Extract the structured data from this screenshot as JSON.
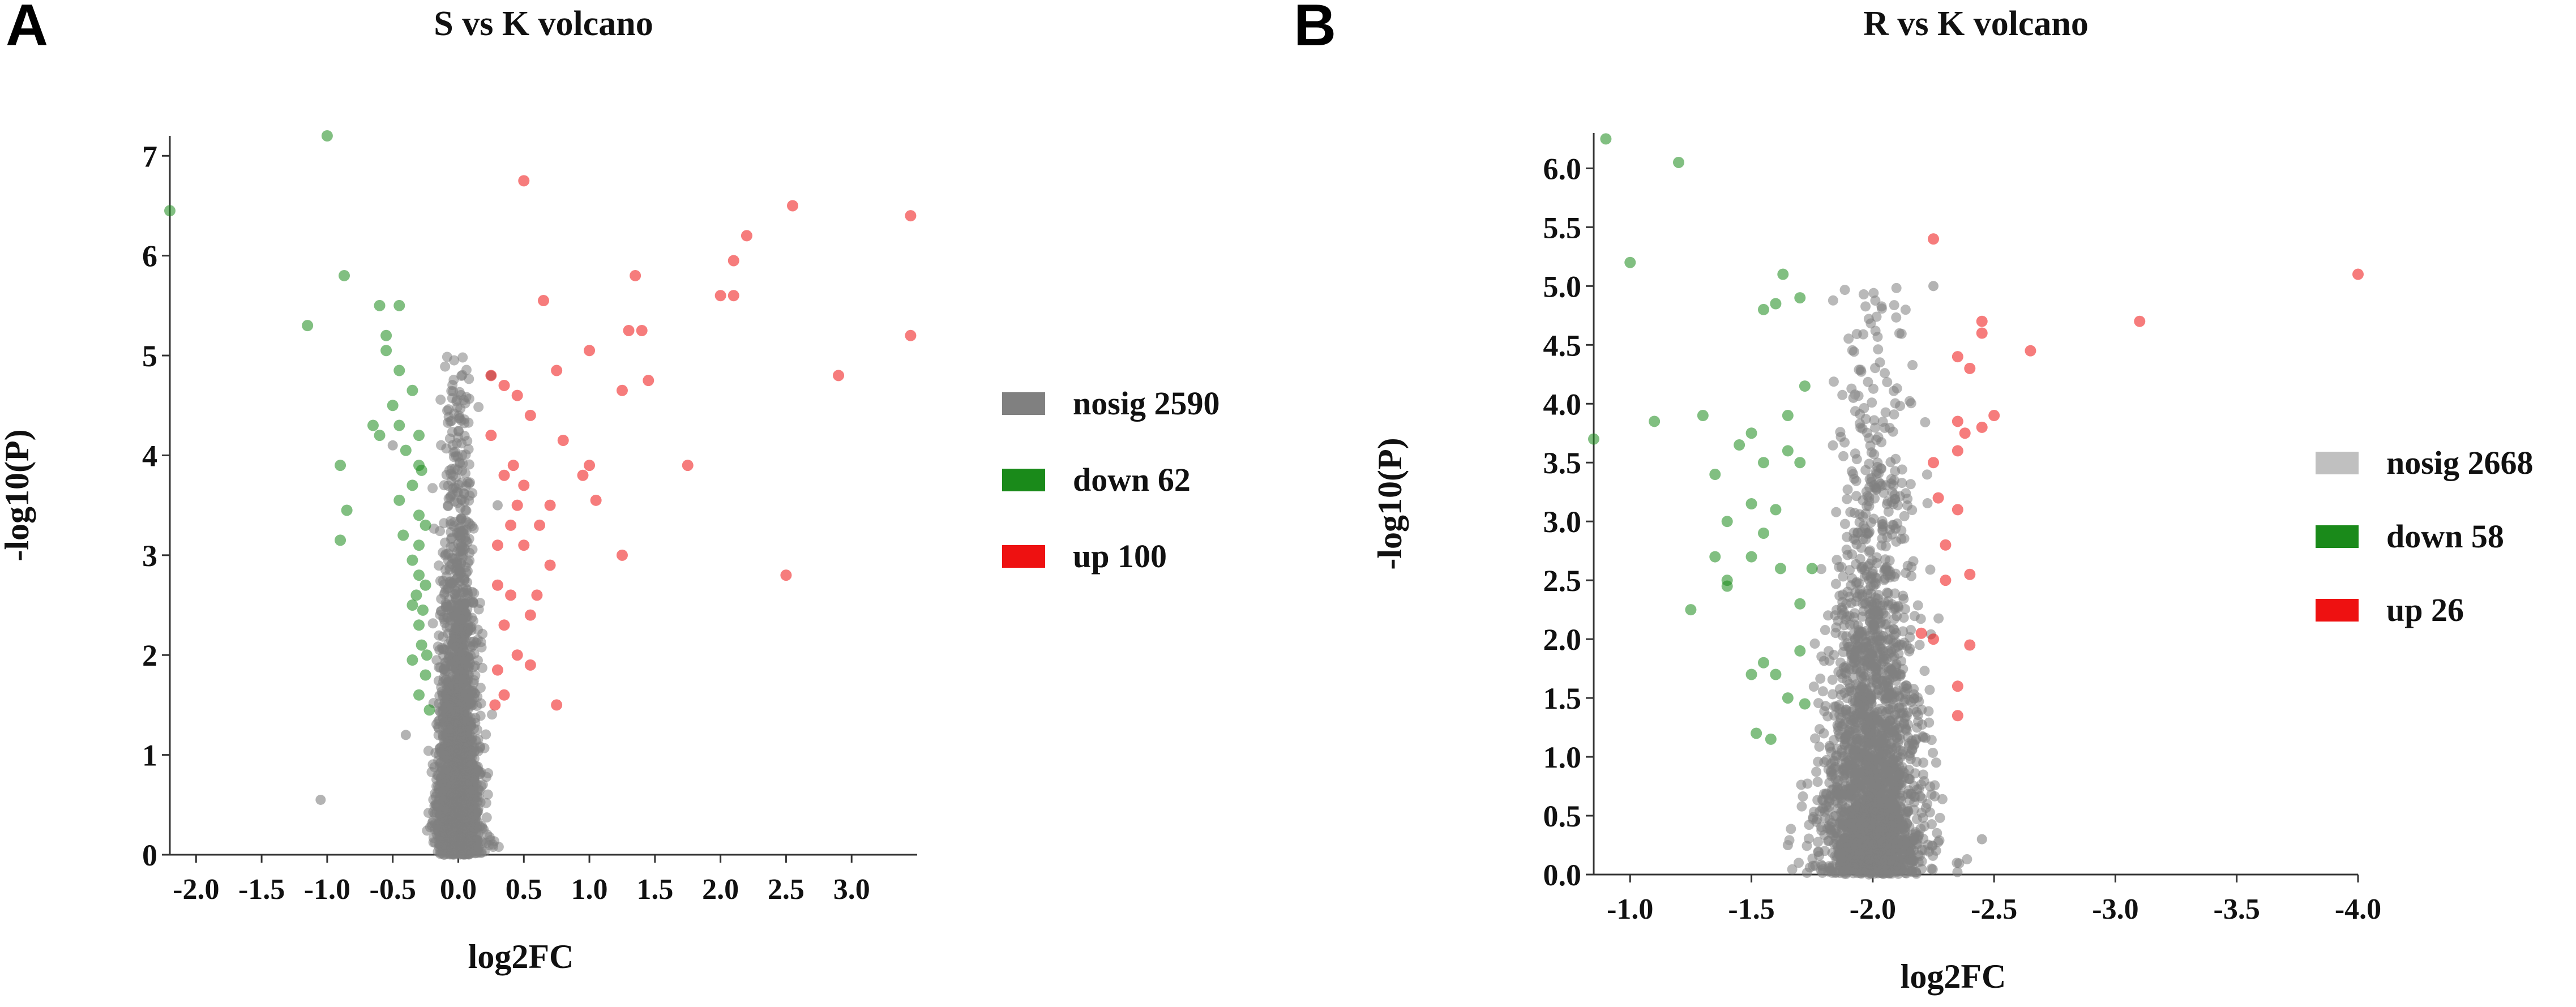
{
  "chart_data": [
    {
      "type": "scatter",
      "panel_label": "A",
      "title": "S vs K volcano",
      "xlabel": "log2FC",
      "ylabel": "-log10(P)",
      "xlim": [
        -2.2,
        3.5
      ],
      "ylim": [
        0,
        7.2
      ],
      "xticks": [
        -2.0,
        -1.5,
        -1.0,
        -0.5,
        0.0,
        0.5,
        1.0,
        1.5,
        2.0,
        2.5,
        3.0
      ],
      "xtick_labels": [
        "-2.0",
        "-1.5",
        "-1.0",
        "-0.5",
        "0.0",
        "0.5",
        "1.0",
        "1.5",
        "2.0",
        "2.5",
        "3.0"
      ],
      "yticks": [
        0,
        1,
        2,
        3,
        4,
        5,
        6,
        7
      ],
      "ytick_labels": [
        "0",
        "1",
        "2",
        "3",
        "4",
        "5",
        "6",
        "7"
      ],
      "legend": [
        {
          "label": "nosig 2590",
          "color": "#808080"
        },
        {
          "label": "down 62",
          "color": "#1a8a1a"
        },
        {
          "label": "up 100",
          "color": "#ee1111"
        }
      ],
      "series": [
        {
          "name": "nosig",
          "count": 2590,
          "color": "#808080",
          "x_center": 0.0,
          "x_spread_at_base": 0.45,
          "x_spread_at_top": 0.1,
          "y_max": 5.0,
          "highlighted_points": [
            [
              -1.05,
              0.55
            ],
            [
              -0.5,
              4.1
            ],
            [
              0.25,
              4.8
            ],
            [
              0.3,
              3.5
            ],
            [
              -0.4,
              1.2
            ]
          ]
        },
        {
          "name": "down",
          "count": 62,
          "color": "#1a8a1a",
          "points": [
            [
              -2.2,
              6.45
            ],
            [
              -1.0,
              7.2
            ],
            [
              -0.87,
              5.8
            ],
            [
              -1.15,
              5.3
            ],
            [
              -0.6,
              5.5
            ],
            [
              -0.45,
              5.5
            ],
            [
              -0.55,
              5.2
            ],
            [
              -0.55,
              5.05
            ],
            [
              -0.45,
              4.85
            ],
            [
              -0.35,
              4.65
            ],
            [
              -0.5,
              4.5
            ],
            [
              -0.6,
              4.2
            ],
            [
              -0.4,
              4.05
            ],
            [
              -0.3,
              3.9
            ],
            [
              -0.9,
              3.9
            ],
            [
              -0.85,
              3.45
            ],
            [
              -0.9,
              3.15
            ],
            [
              -0.35,
              3.7
            ],
            [
              -0.45,
              3.55
            ],
            [
              -0.3,
              3.4
            ],
            [
              -0.25,
              3.3
            ],
            [
              -0.3,
              3.1
            ],
            [
              -0.35,
              2.95
            ],
            [
              -0.3,
              2.8
            ],
            [
              -0.25,
              2.7
            ],
            [
              -0.35,
              2.5
            ],
            [
              -0.3,
              2.3
            ],
            [
              -0.28,
              2.1
            ],
            [
              -0.35,
              1.95
            ],
            [
              -0.25,
              1.8
            ],
            [
              -0.3,
              1.6
            ],
            [
              -0.22,
              1.45
            ],
            [
              -0.45,
              4.3
            ],
            [
              -0.65,
              4.3
            ],
            [
              -0.3,
              4.2
            ],
            [
              -0.28,
              3.85
            ],
            [
              -0.42,
              3.2
            ],
            [
              -0.32,
              2.6
            ],
            [
              -0.27,
              2.45
            ],
            [
              -0.24,
              2.0
            ]
          ]
        },
        {
          "name": "up",
          "count": 100,
          "color": "#ee1111",
          "points": [
            [
              0.5,
              6.75
            ],
            [
              0.65,
              5.55
            ],
            [
              0.25,
              4.8
            ],
            [
              0.35,
              4.7
            ],
            [
              0.45,
              4.6
            ],
            [
              0.75,
              4.85
            ],
            [
              1.0,
              5.05
            ],
            [
              1.3,
              5.25
            ],
            [
              1.4,
              5.25
            ],
            [
              1.35,
              5.8
            ],
            [
              1.45,
              4.75
            ],
            [
              1.25,
              4.65
            ],
            [
              2.0,
              5.6
            ],
            [
              2.1,
              5.95
            ],
            [
              2.2,
              6.2
            ],
            [
              2.55,
              6.5
            ],
            [
              2.1,
              5.6
            ],
            [
              3.45,
              6.4
            ],
            [
              3.45,
              5.2
            ],
            [
              2.9,
              4.8
            ],
            [
              1.75,
              3.9
            ],
            [
              1.25,
              3.0
            ],
            [
              2.5,
              2.8
            ],
            [
              0.55,
              4.4
            ],
            [
              0.8,
              4.15
            ],
            [
              0.95,
              3.8
            ],
            [
              1.0,
              3.9
            ],
            [
              1.05,
              3.55
            ],
            [
              0.7,
              3.5
            ],
            [
              0.5,
              3.7
            ],
            [
              0.35,
              3.8
            ],
            [
              0.4,
              3.3
            ],
            [
              0.5,
              3.1
            ],
            [
              0.6,
              2.6
            ],
            [
              0.7,
              2.9
            ],
            [
              0.3,
              2.7
            ],
            [
              0.35,
              2.3
            ],
            [
              0.45,
              2.0
            ],
            [
              0.55,
              1.9
            ],
            [
              0.3,
              1.85
            ],
            [
              0.35,
              1.6
            ],
            [
              0.28,
              1.5
            ],
            [
              0.75,
              1.5
            ],
            [
              0.4,
              2.6
            ],
            [
              0.55,
              2.4
            ],
            [
              0.3,
              3.1
            ],
            [
              0.42,
              3.9
            ],
            [
              0.25,
              4.2
            ],
            [
              0.45,
              3.5
            ],
            [
              0.62,
              3.3
            ]
          ]
        }
      ]
    },
    {
      "type": "scatter",
      "panel_label": "B",
      "title": "R vs K volcano",
      "xlabel": "log2FC",
      "ylabel": "-log10(P)",
      "xlim": [
        -0.85,
        -4.0
      ],
      "ylim": [
        0,
        6.3
      ],
      "xticks": [
        -1.0,
        -1.5,
        -2.0,
        -2.5,
        -3.0,
        -3.5,
        -4.0
      ],
      "xtick_labels": [
        "-1.0",
        "-1.5",
        "-2.0",
        "-2.5",
        "-3.0",
        "-3.5",
        "-4.0"
      ],
      "yticks": [
        0.0,
        0.5,
        1.0,
        1.5,
        2.0,
        2.5,
        3.0,
        3.5,
        4.0,
        4.5,
        5.0,
        5.5,
        6.0
      ],
      "ytick_labels": [
        "0.0",
        "0.5",
        "1.0",
        "1.5",
        "2.0",
        "2.5",
        "3.0",
        "3.5",
        "4.0",
        "4.5",
        "5.0",
        "5.5",
        "6.0"
      ],
      "legend": [
        {
          "label": "nosig 2668",
          "color": "#c0c0c0"
        },
        {
          "label": "down 58",
          "color": "#1a8a1a"
        },
        {
          "label": "up 26",
          "color": "#ee1111"
        }
      ],
      "series": [
        {
          "name": "nosig",
          "count": 2668,
          "color": "#808080",
          "x_center": -2.0,
          "x_spread_at_base": 0.6,
          "x_spread_at_top": 0.12,
          "y_max": 5.0,
          "highlighted_points": [
            [
              -1.92,
              4.05
            ],
            [
              -2.25,
              5.0
            ],
            [
              -1.65,
              0.25
            ],
            [
              -2.45,
              0.3
            ]
          ]
        },
        {
          "name": "down",
          "count": 58,
          "color": "#1a8a1a",
          "points": [
            [
              -0.85,
              3.7
            ],
            [
              -0.9,
              6.25
            ],
            [
              -1.0,
              5.2
            ],
            [
              -1.1,
              3.85
            ],
            [
              -1.2,
              6.05
            ],
            [
              -1.3,
              3.9
            ],
            [
              -1.35,
              3.4
            ],
            [
              -1.35,
              2.7
            ],
            [
              -1.4,
              3.0
            ],
            [
              -1.4,
              2.45
            ],
            [
              -1.4,
              2.5
            ],
            [
              -1.25,
              2.25
            ],
            [
              -1.5,
              3.75
            ],
            [
              -1.5,
              3.15
            ],
            [
              -1.5,
              2.7
            ],
            [
              -1.55,
              4.8
            ],
            [
              -1.6,
              4.85
            ],
            [
              -1.63,
              5.1
            ],
            [
              -1.7,
              4.9
            ],
            [
              -1.65,
              3.6
            ],
            [
              -1.6,
              3.1
            ],
            [
              -1.7,
              3.5
            ],
            [
              -1.55,
              3.5
            ],
            [
              -1.62,
              2.6
            ],
            [
              -1.55,
              1.8
            ],
            [
              -1.5,
              1.7
            ],
            [
              -1.6,
              1.7
            ],
            [
              -1.52,
              1.2
            ],
            [
              -1.55,
              2.9
            ],
            [
              -1.45,
              3.65
            ],
            [
              -1.65,
              3.9
            ],
            [
              -1.72,
              4.15
            ],
            [
              -1.75,
              2.6
            ],
            [
              -1.7,
              2.3
            ],
            [
              -1.7,
              1.9
            ],
            [
              -1.65,
              1.5
            ],
            [
              -1.72,
              1.45
            ],
            [
              -1.58,
              1.15
            ]
          ]
        },
        {
          "name": "up",
          "count": 26,
          "color": "#ee1111",
          "points": [
            [
              -2.25,
              5.4
            ],
            [
              -2.45,
              4.7
            ],
            [
              -2.45,
              4.6
            ],
            [
              -2.65,
              4.45
            ],
            [
              -3.1,
              4.7
            ],
            [
              -4.0,
              5.1
            ],
            [
              -2.35,
              4.4
            ],
            [
              -2.4,
              4.3
            ],
            [
              -2.35,
              3.85
            ],
            [
              -2.38,
              3.75
            ],
            [
              -2.35,
              3.6
            ],
            [
              -2.45,
              3.8
            ],
            [
              -2.5,
              3.9
            ],
            [
              -2.25,
              3.5
            ],
            [
              -2.35,
              3.1
            ],
            [
              -2.3,
              2.8
            ],
            [
              -2.4,
              2.55
            ],
            [
              -2.3,
              2.5
            ],
            [
              -2.25,
              2.0
            ],
            [
              -2.2,
              2.05
            ],
            [
              -2.4,
              1.95
            ],
            [
              -2.35,
              1.6
            ],
            [
              -2.35,
              1.35
            ],
            [
              -2.27,
              3.2
            ]
          ]
        }
      ]
    }
  ]
}
